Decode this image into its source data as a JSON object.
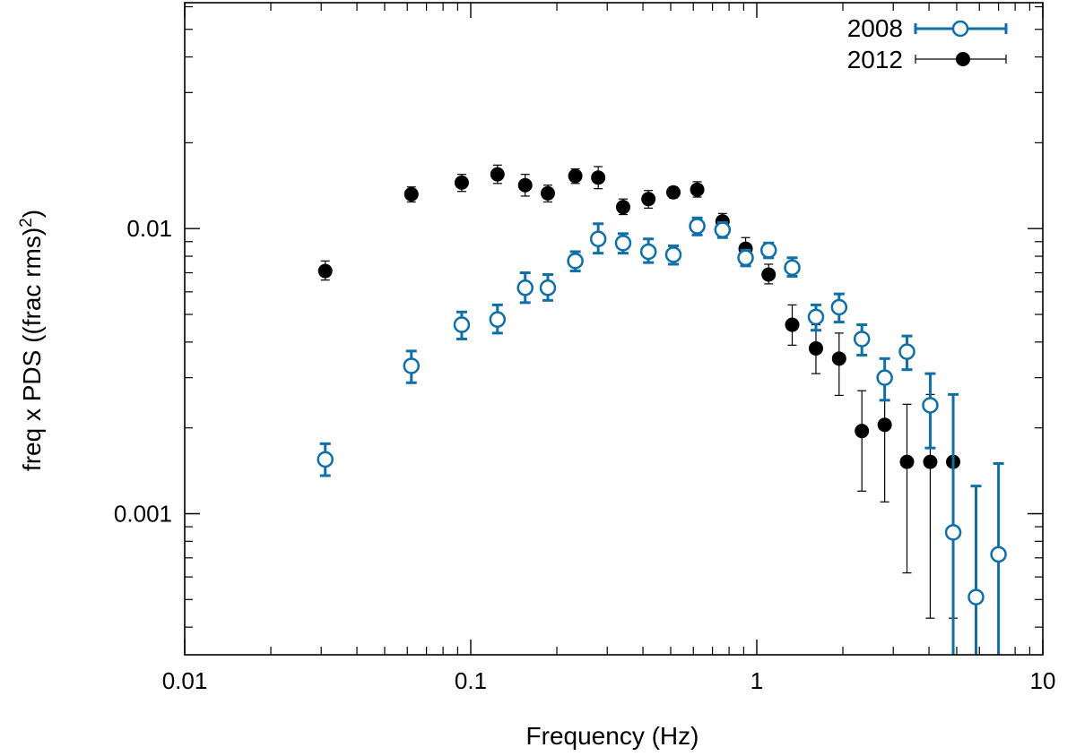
{
  "chart_data": {
    "type": "scatter",
    "xscale": "log",
    "yscale": "log",
    "xlim": [
      0.01,
      10
    ],
    "ylim": [
      0.00032,
      0.062
    ],
    "xlabel": "Frequency (Hz)",
    "ylabel_main": "freq x PDS ((frac rms)",
    "ylabel_sup": "2",
    "ylabel_end": ")",
    "xticks": [
      {
        "value": 0.01,
        "label": "0.01"
      },
      {
        "value": 0.1,
        "label": "0.1"
      },
      {
        "value": 1,
        "label": "1"
      },
      {
        "value": 10,
        "label": "10"
      }
    ],
    "yticks": [
      {
        "value": 0.001,
        "label": "0.001"
      },
      {
        "value": 0.01,
        "label": "0.01"
      }
    ],
    "legend_position": "top-right",
    "series": [
      {
        "name": "2008",
        "label": "2008",
        "marker": "open-circle",
        "color": "#0f6fa8",
        "points": [
          {
            "x": 0.031,
            "y": 0.00155,
            "lo": 0.00136,
            "hi": 0.00176
          },
          {
            "x": 0.062,
            "y": 0.0033,
            "lo": 0.00288,
            "hi": 0.00372
          },
          {
            "x": 0.093,
            "y": 0.0046,
            "lo": 0.0041,
            "hi": 0.0051
          },
          {
            "x": 0.124,
            "y": 0.0048,
            "lo": 0.0043,
            "hi": 0.0054
          },
          {
            "x": 0.155,
            "y": 0.0062,
            "lo": 0.0055,
            "hi": 0.007
          },
          {
            "x": 0.186,
            "y": 0.0062,
            "lo": 0.0056,
            "hi": 0.0069
          },
          {
            "x": 0.232,
            "y": 0.0077,
            "lo": 0.0071,
            "hi": 0.0083
          },
          {
            "x": 0.279,
            "y": 0.0092,
            "lo": 0.0082,
            "hi": 0.0104
          },
          {
            "x": 0.341,
            "y": 0.0089,
            "lo": 0.0082,
            "hi": 0.0096
          },
          {
            "x": 0.418,
            "y": 0.0083,
            "lo": 0.0076,
            "hi": 0.0092
          },
          {
            "x": 0.511,
            "y": 0.0081,
            "lo": 0.0075,
            "hi": 0.0087
          },
          {
            "x": 0.619,
            "y": 0.0102,
            "lo": 0.0095,
            "hi": 0.0109
          },
          {
            "x": 0.759,
            "y": 0.0099,
            "lo": 0.0093,
            "hi": 0.0105
          },
          {
            "x": 0.914,
            "y": 0.0079,
            "lo": 0.0074,
            "hi": 0.0084
          },
          {
            "x": 1.1,
            "y": 0.0084,
            "lo": 0.0079,
            "hi": 0.0089
          },
          {
            "x": 1.33,
            "y": 0.0073,
            "lo": 0.0068,
            "hi": 0.0079
          },
          {
            "x": 1.61,
            "y": 0.0049,
            "lo": 0.0044,
            "hi": 0.0054
          },
          {
            "x": 1.94,
            "y": 0.0053,
            "lo": 0.0047,
            "hi": 0.0059
          },
          {
            "x": 2.33,
            "y": 0.0041,
            "lo": 0.0036,
            "hi": 0.0046
          },
          {
            "x": 2.8,
            "y": 0.003,
            "lo": 0.0025,
            "hi": 0.0035
          },
          {
            "x": 3.35,
            "y": 0.0037,
            "lo": 0.0032,
            "hi": 0.0042
          },
          {
            "x": 4.04,
            "y": 0.0024,
            "lo": 0.0017,
            "hi": 0.0031
          },
          {
            "x": 4.86,
            "y": 0.00086,
            "lo": 0.00028,
            "hi": 0.00262
          },
          {
            "x": 5.84,
            "y": 0.00051,
            "lo": 0.00028,
            "hi": 0.00125
          },
          {
            "x": 7.0,
            "y": 0.00072,
            "lo": 0.00028,
            "hi": 0.0015
          }
        ]
      },
      {
        "name": "2012",
        "label": "2012",
        "marker": "filled-circle",
        "color": "#000000",
        "points": [
          {
            "x": 0.031,
            "y": 0.0071,
            "lo": 0.0066,
            "hi": 0.0077
          },
          {
            "x": 0.062,
            "y": 0.0132,
            "lo": 0.0124,
            "hi": 0.014
          },
          {
            "x": 0.093,
            "y": 0.0145,
            "lo": 0.0135,
            "hi": 0.0155
          },
          {
            "x": 0.124,
            "y": 0.0155,
            "lo": 0.0144,
            "hi": 0.0167
          },
          {
            "x": 0.155,
            "y": 0.0142,
            "lo": 0.013,
            "hi": 0.0155
          },
          {
            "x": 0.186,
            "y": 0.0133,
            "lo": 0.0124,
            "hi": 0.0142
          },
          {
            "x": 0.232,
            "y": 0.0153,
            "lo": 0.0144,
            "hi": 0.0162
          },
          {
            "x": 0.279,
            "y": 0.0151,
            "lo": 0.0138,
            "hi": 0.0165
          },
          {
            "x": 0.341,
            "y": 0.0119,
            "lo": 0.0112,
            "hi": 0.0127
          },
          {
            "x": 0.418,
            "y": 0.0127,
            "lo": 0.0118,
            "hi": 0.0136
          },
          {
            "x": 0.511,
            "y": 0.0134,
            "lo": 0.0128,
            "hi": 0.014
          },
          {
            "x": 0.619,
            "y": 0.0137,
            "lo": 0.0129,
            "hi": 0.0146
          },
          {
            "x": 0.759,
            "y": 0.0106,
            "lo": 0.0099,
            "hi": 0.0113
          },
          {
            "x": 0.914,
            "y": 0.0085,
            "lo": 0.0077,
            "hi": 0.0093
          },
          {
            "x": 1.1,
            "y": 0.0069,
            "lo": 0.0064,
            "hi": 0.0075
          },
          {
            "x": 1.33,
            "y": 0.0046,
            "lo": 0.0039,
            "hi": 0.0054
          },
          {
            "x": 1.61,
            "y": 0.0038,
            "lo": 0.0031,
            "hi": 0.0046
          },
          {
            "x": 1.94,
            "y": 0.0035,
            "lo": 0.0026,
            "hi": 0.0043
          },
          {
            "x": 2.33,
            "y": 0.00195,
            "lo": 0.0012,
            "hi": 0.0027
          },
          {
            "x": 2.8,
            "y": 0.00205,
            "lo": 0.0011,
            "hi": 0.0029
          },
          {
            "x": 3.35,
            "y": 0.00152,
            "lo": 0.00062,
            "hi": 0.00242
          },
          {
            "x": 4.04,
            "y": 0.00152,
            "lo": 0.00043,
            "hi": 0.00262
          },
          {
            "x": 4.86,
            "y": 0.00152,
            "lo": 0.00043,
            "hi": 0.00262
          }
        ]
      }
    ]
  }
}
